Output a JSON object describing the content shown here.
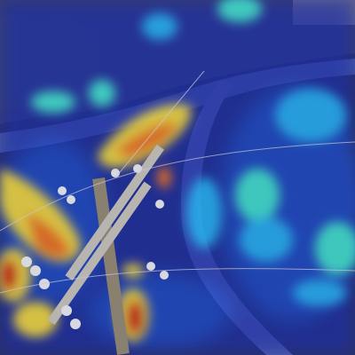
{
  "image": {
    "kind": "aerial-photo-with-heatmap-overlay",
    "base_palette": {
      "ground": "#2a3160",
      "road": "#4a5590",
      "vegetation": "#3a4a6a",
      "pole_wood": "#8a8070",
      "crossarm": "#b8b4b0",
      "insulator": "#d8d8e0"
    },
    "heatmap_palette": [
      "#1a2a9a",
      "#1e50d8",
      "#28a8e8",
      "#40d8c8",
      "#e8d040",
      "#e87020",
      "#c81818"
    ],
    "overlay_opacity": 0.55
  }
}
